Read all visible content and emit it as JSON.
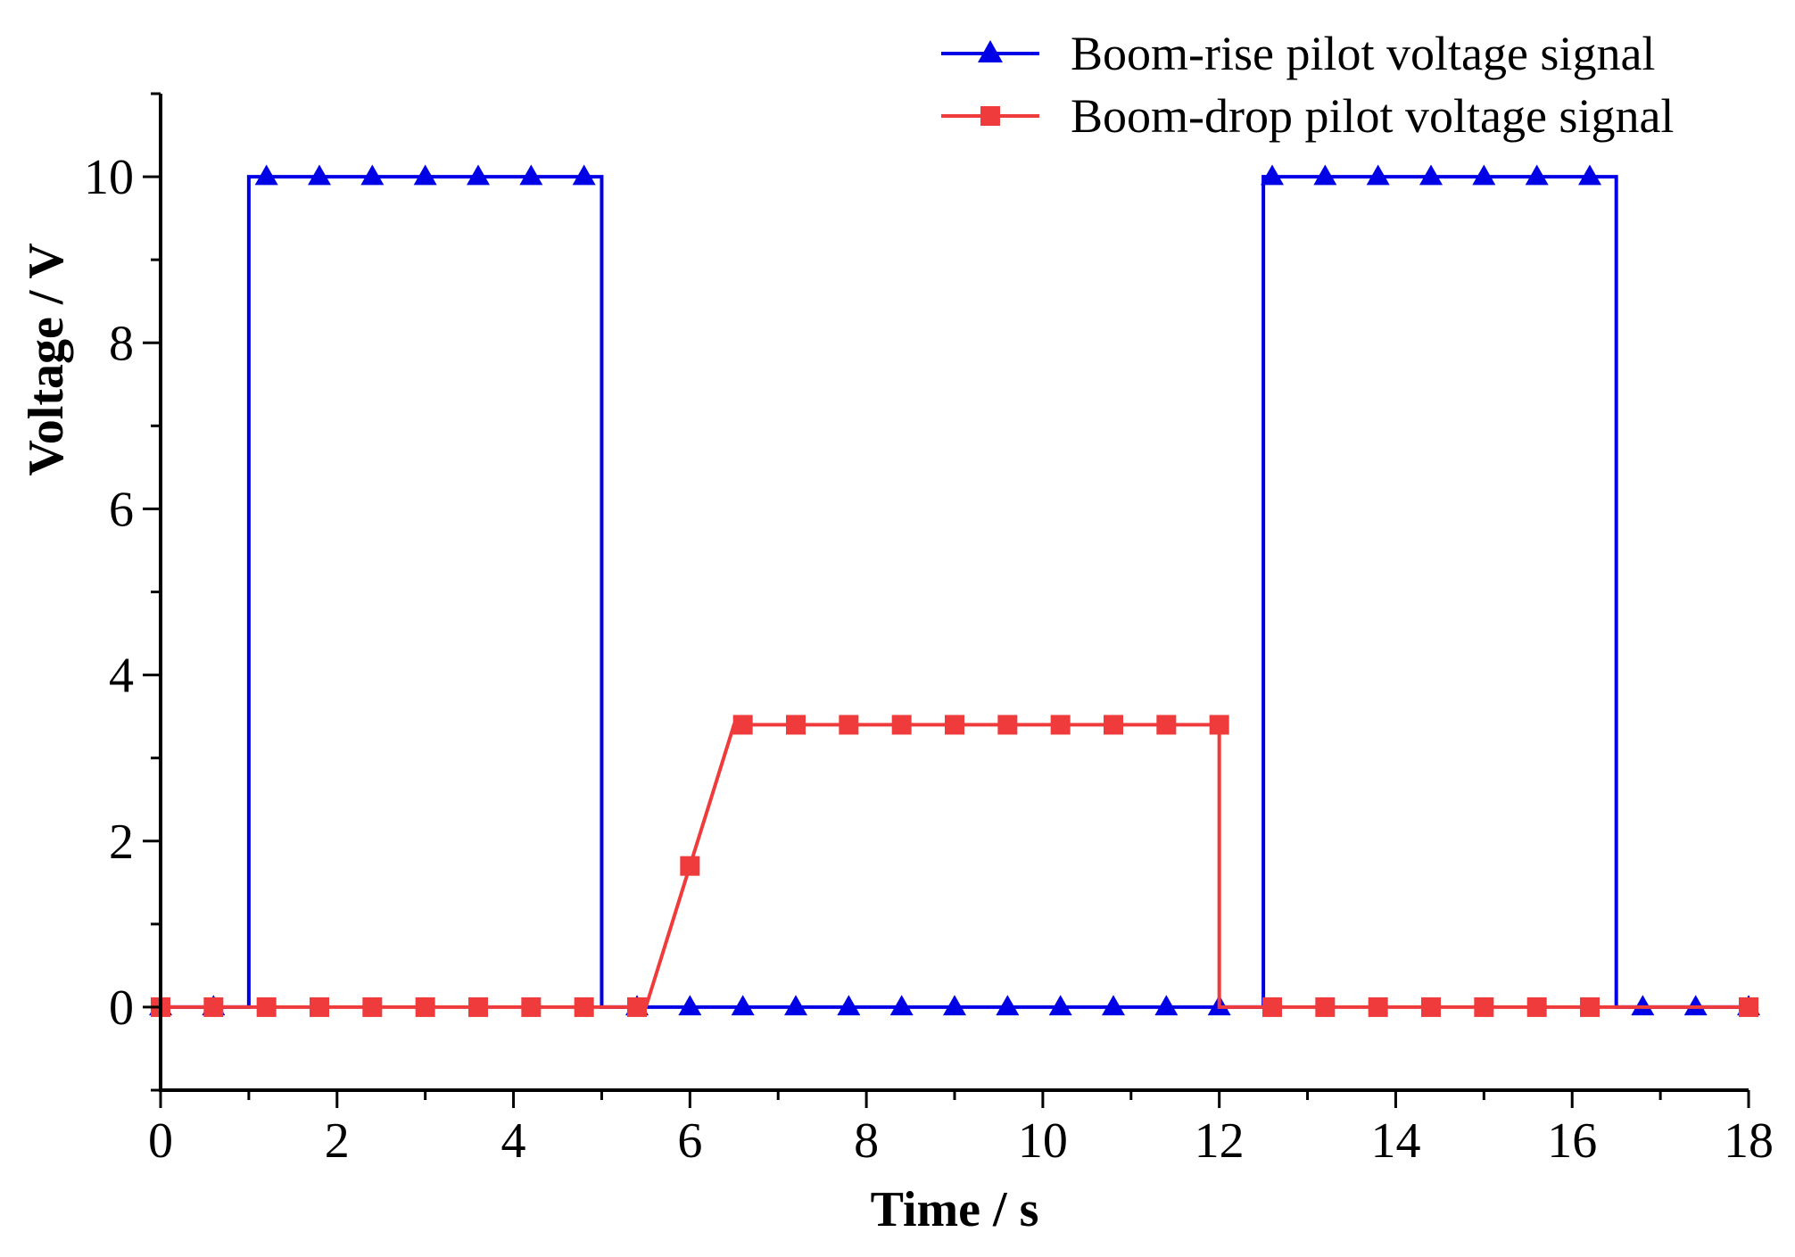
{
  "chart_data": {
    "type": "line",
    "title": "",
    "xlabel": "Time / s",
    "ylabel": "Voltage / V",
    "xlim": [
      0,
      18
    ],
    "ylim": [
      -1,
      11
    ],
    "xticks": [
      0,
      2,
      4,
      6,
      8,
      10,
      12,
      14,
      16,
      18
    ],
    "xtick_labels": [
      "0",
      "2",
      "4",
      "6",
      "8",
      "10",
      "12",
      "14",
      "16",
      "18"
    ],
    "yticks": [
      0,
      2,
      4,
      6,
      8,
      10
    ],
    "ytick_labels": [
      "0",
      "2",
      "4",
      "6",
      "8",
      "10"
    ],
    "grid": false,
    "legend_position": "top-right",
    "series": [
      {
        "name": "Boom-rise pilot voltage signal",
        "color": "#0000e6",
        "marker": "triangle",
        "x": [
          0,
          1,
          1,
          5,
          5,
          12.5,
          12.5,
          16.5,
          16.5,
          18
        ],
        "y": [
          0,
          0,
          10,
          10,
          0,
          0,
          10,
          10,
          0,
          0
        ],
        "markers_x": [
          0,
          0.6,
          1.2,
          1.8,
          2.4,
          3.0,
          3.6,
          4.2,
          4.8,
          5.4,
          6.0,
          6.6,
          7.2,
          7.8,
          8.4,
          9.0,
          9.6,
          10.2,
          10.8,
          11.4,
          12.0,
          12.6,
          13.2,
          13.8,
          14.4,
          15.0,
          15.6,
          16.2,
          16.8,
          17.4,
          18.0
        ],
        "markers_y": [
          0,
          0,
          10,
          10,
          10,
          10,
          10,
          10,
          10,
          0,
          0,
          0,
          0,
          0,
          0,
          0,
          0,
          0,
          0,
          0,
          0,
          10,
          10,
          10,
          10,
          10,
          10,
          10,
          0,
          0,
          0
        ]
      },
      {
        "name": "Boom-drop pilot voltage signal",
        "color": "#ef3b3b",
        "marker": "square",
        "x": [
          0,
          5.5,
          6.5,
          12,
          12,
          18
        ],
        "y": [
          0,
          0,
          3.4,
          3.4,
          0,
          0
        ],
        "markers_x": [
          0,
          0.6,
          1.2,
          1.8,
          2.4,
          3.0,
          3.6,
          4.2,
          4.8,
          5.4,
          6.0,
          6.6,
          7.2,
          7.8,
          8.4,
          9.0,
          9.6,
          10.2,
          10.8,
          11.4,
          12.0,
          12.6,
          13.2,
          13.8,
          14.4,
          15.0,
          15.6,
          16.2,
          18.0
        ],
        "markers_y": [
          0,
          0,
          0,
          0,
          0,
          0,
          0,
          0,
          0,
          0,
          1.7,
          3.4,
          3.4,
          3.4,
          3.4,
          3.4,
          3.4,
          3.4,
          3.4,
          3.4,
          3.4,
          0,
          0,
          0,
          0,
          0,
          0,
          0,
          0
        ]
      }
    ]
  }
}
